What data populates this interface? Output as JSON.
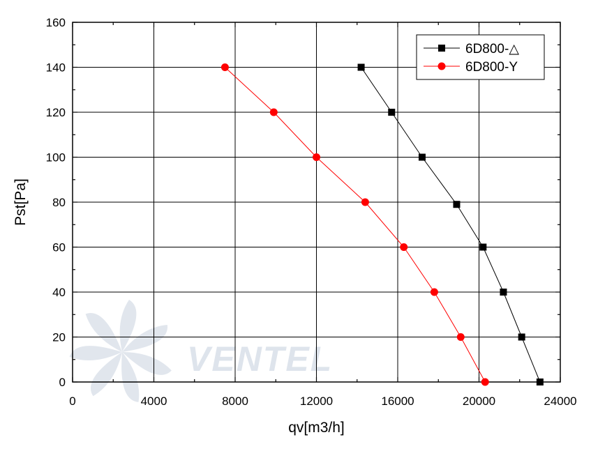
{
  "chart_data": {
    "type": "line",
    "title": "",
    "xlabel": "qv[m3/h]",
    "ylabel": "Pst[Pa]",
    "xlim": [
      0,
      24000
    ],
    "ylim": [
      0,
      160
    ],
    "x_ticks": [
      0,
      4000,
      8000,
      12000,
      16000,
      20000,
      24000
    ],
    "y_ticks": [
      0,
      20,
      40,
      60,
      80,
      100,
      120,
      140,
      160
    ],
    "x_tick_labels": [
      "0",
      "4000",
      "8000",
      "12000",
      "16000",
      "20000",
      "24000"
    ],
    "y_tick_labels": [
      "0",
      "20",
      "40",
      "60",
      "80",
      "100",
      "120",
      "140",
      "160"
    ],
    "grid": true,
    "legend_position": "top-right",
    "series": [
      {
        "name": "6D800-△",
        "marker": "square",
        "color": "#000000",
        "points": [
          {
            "x": 14200,
            "y": 140
          },
          {
            "x": 15700,
            "y": 120
          },
          {
            "x": 17200,
            "y": 100
          },
          {
            "x": 18900,
            "y": 79
          },
          {
            "x": 20200,
            "y": 60
          },
          {
            "x": 21200,
            "y": 40
          },
          {
            "x": 22100,
            "y": 20
          },
          {
            "x": 23000,
            "y": 0
          }
        ]
      },
      {
        "name": "6D800-Y",
        "marker": "circle",
        "color": "#ff0000",
        "points": [
          {
            "x": 7500,
            "y": 140
          },
          {
            "x": 9900,
            "y": 120
          },
          {
            "x": 12000,
            "y": 100
          },
          {
            "x": 14400,
            "y": 80
          },
          {
            "x": 16300,
            "y": 60
          },
          {
            "x": 17800,
            "y": 40
          },
          {
            "x": 19100,
            "y": 20
          },
          {
            "x": 20300,
            "y": 0
          }
        ]
      }
    ]
  },
  "watermark": {
    "text": "VENTEL",
    "color": "#c9d3e0",
    "accent": "#7fb2df"
  }
}
